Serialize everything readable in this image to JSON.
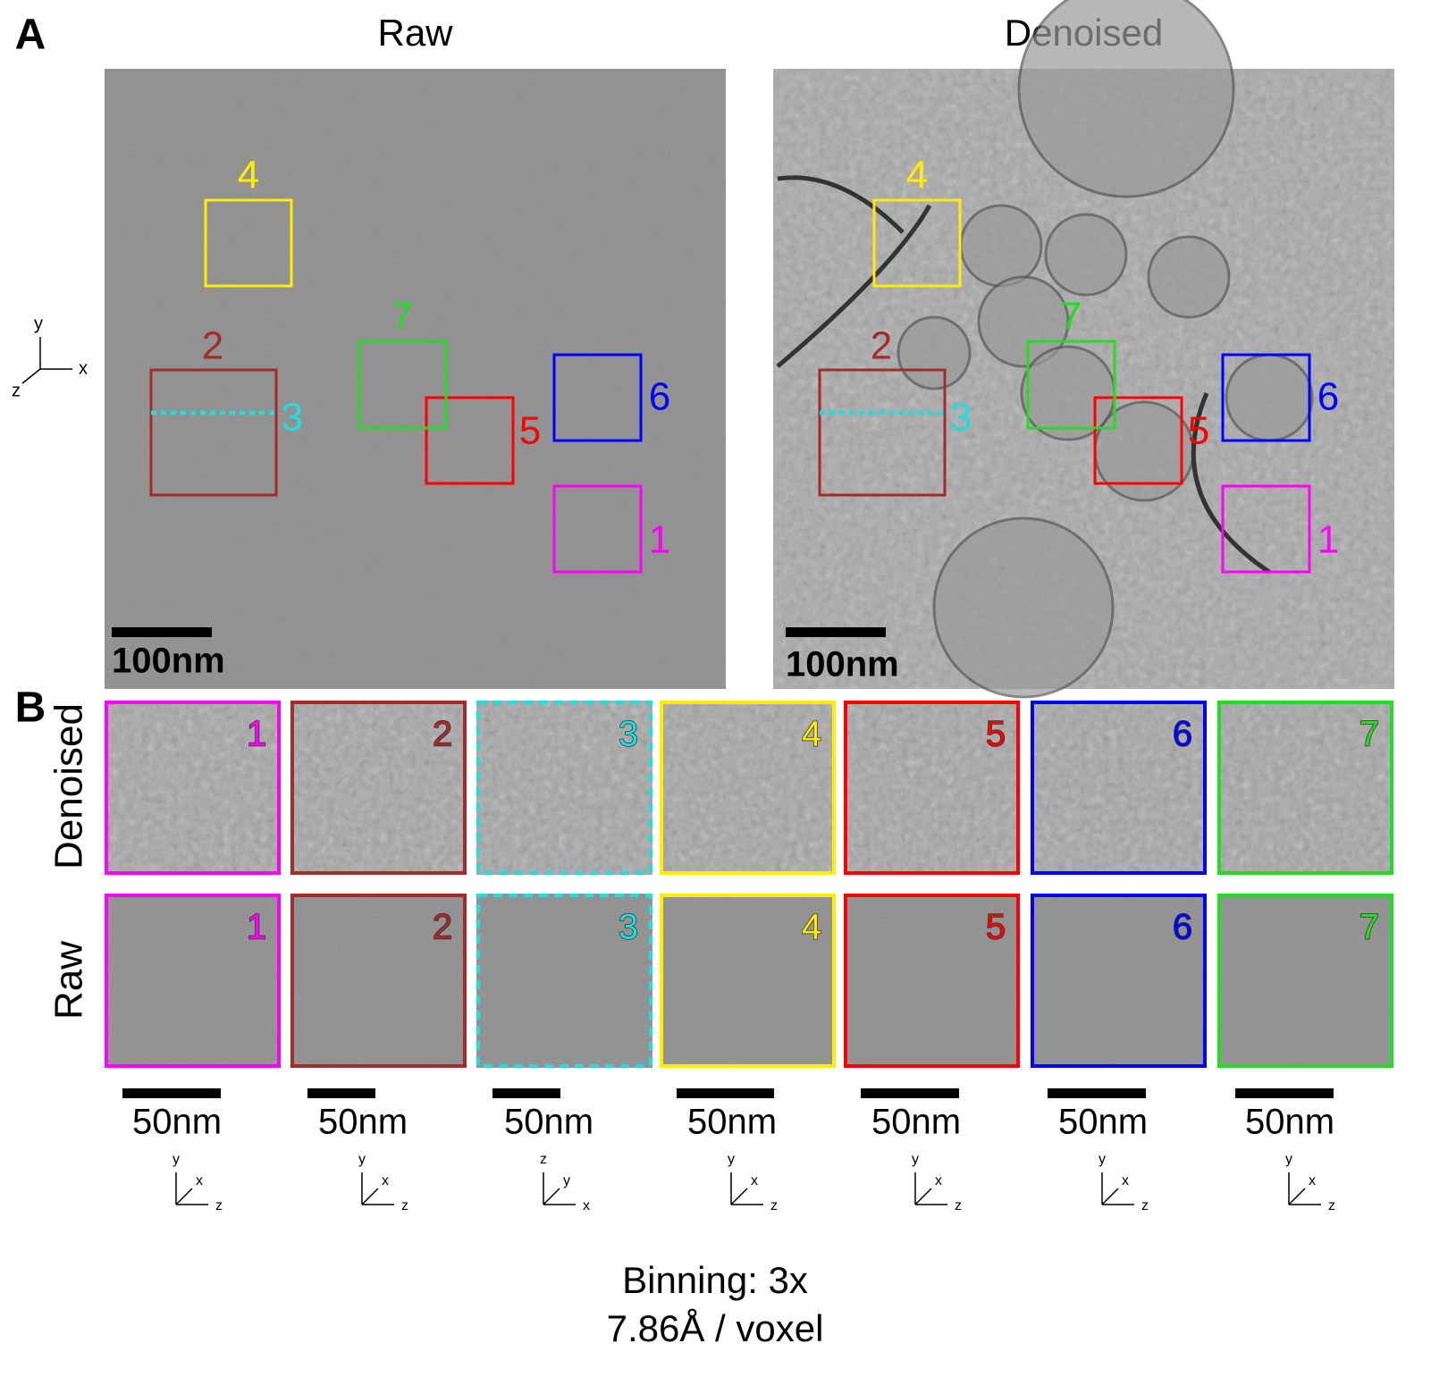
{
  "panel_a": {
    "label": "A",
    "axes": [
      "y",
      "x",
      "z"
    ],
    "images": [
      {
        "title": "Raw",
        "scale_bar": "100nm"
      },
      {
        "title": "Denoised",
        "scale_bar": "100nm"
      }
    ]
  },
  "panel_b": {
    "label": "B",
    "rows": [
      "Denoised",
      "Raw"
    ],
    "crops": [
      {
        "label": "1",
        "color": "#ff00ff",
        "scale_bar": "50nm",
        "axes": [
          "y",
          "x",
          "z"
        ]
      },
      {
        "label": "2",
        "color": "#a52a2a",
        "scale_bar": "50nm",
        "axes": [
          "y",
          "x",
          "z"
        ]
      },
      {
        "label": "3",
        "color": "#22dddd",
        "scale_bar": "50nm",
        "axes": [
          "z",
          "y",
          "x"
        ]
      },
      {
        "label": "4",
        "color": "#ffee00",
        "scale_bar": "50nm",
        "axes": [
          "y",
          "x",
          "z"
        ]
      },
      {
        "label": "5",
        "color": "#ff0000",
        "scale_bar": "50nm",
        "axes": [
          "y",
          "x",
          "z"
        ]
      },
      {
        "label": "6",
        "color": "#0000ff",
        "scale_bar": "50nm",
        "axes": [
          "y",
          "x",
          "z"
        ]
      },
      {
        "label": "7",
        "color": "#22dd22",
        "scale_bar": "50nm",
        "axes": [
          "y",
          "x",
          "z"
        ]
      }
    ]
  },
  "footer": {
    "binning": "Binning: 3x",
    "voxel": "7.86Å / voxel"
  }
}
